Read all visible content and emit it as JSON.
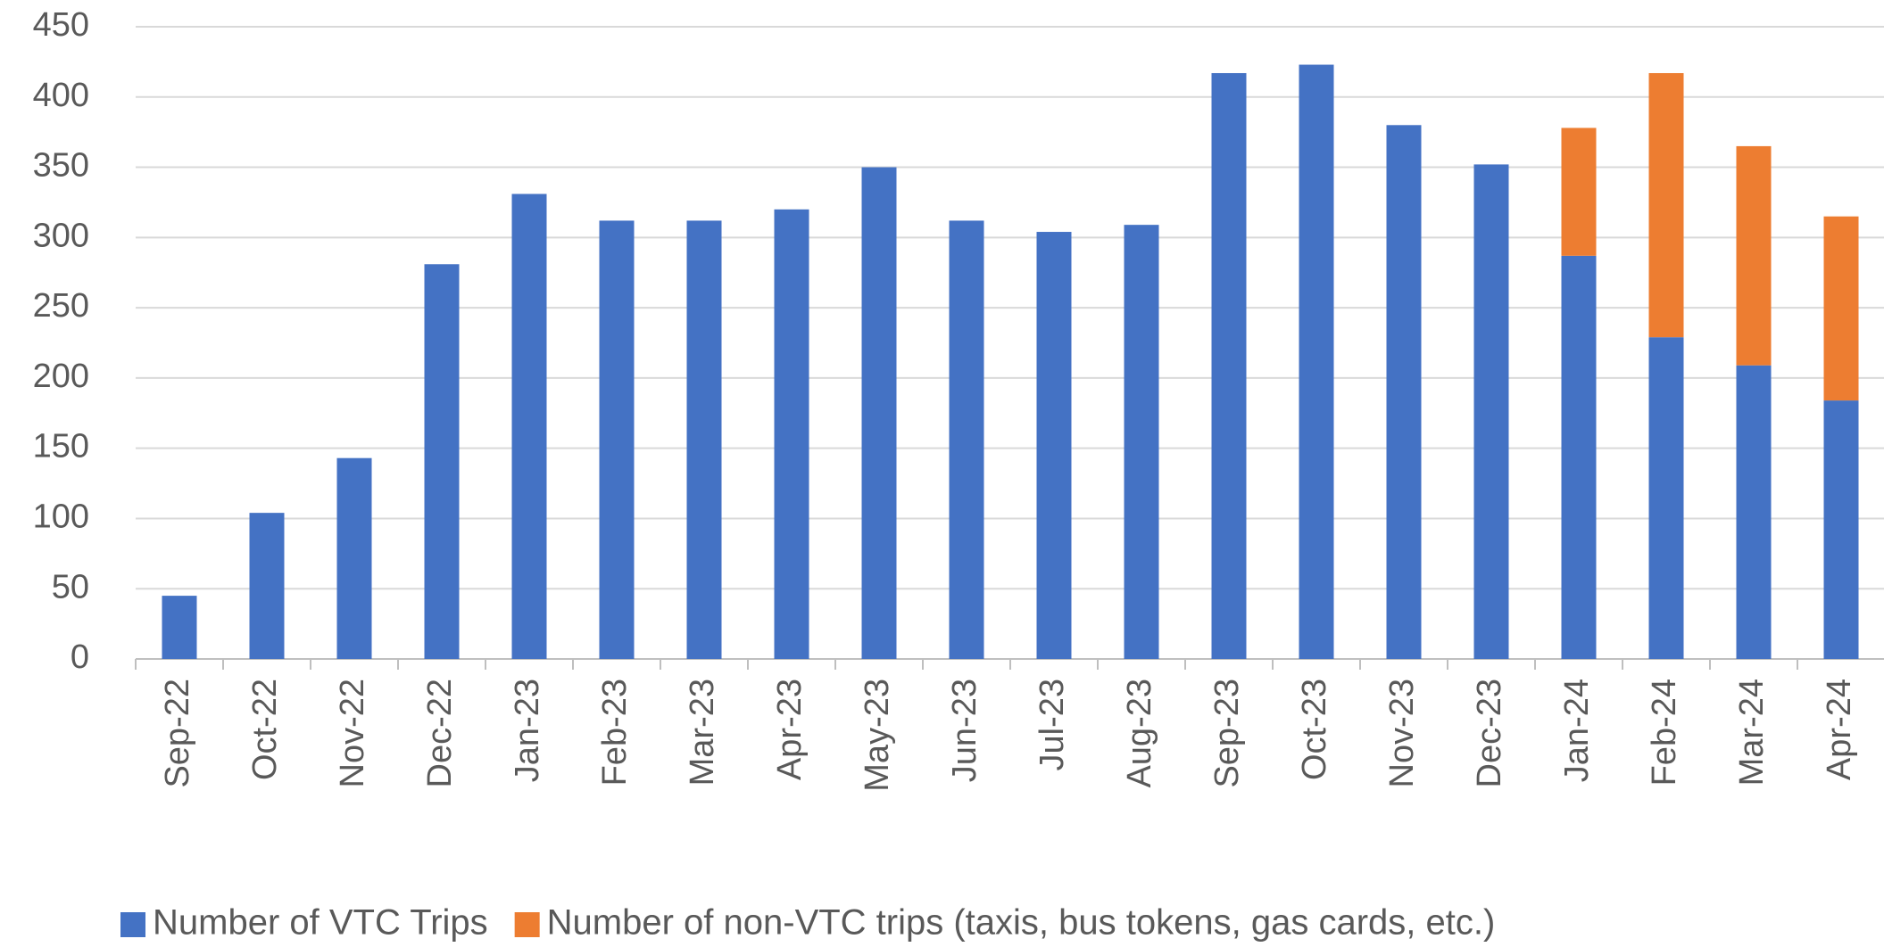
{
  "chart_data": {
    "type": "bar",
    "stacked": true,
    "categories": [
      "Sep-22",
      "Oct-22",
      "Nov-22",
      "Dec-22",
      "Jan-23",
      "Feb-23",
      "Mar-23",
      "Apr-23",
      "May-23",
      "Jun-23",
      "Jul-23",
      "Aug-23",
      "Sep-23",
      "Oct-23",
      "Nov-23",
      "Dec-23",
      "Jan-24",
      "Feb-24",
      "Mar-24",
      "Apr-24"
    ],
    "series": [
      {
        "name": "Number of VTC Trips",
        "color": "#4472c4",
        "values": [
          45,
          104,
          143,
          281,
          331,
          312,
          312,
          320,
          350,
          312,
          304,
          309,
          417,
          423,
          380,
          352,
          287,
          229,
          209,
          184
        ]
      },
      {
        "name": "Number of non-VTC trips (taxis, bus tokens, gas cards, etc.)",
        "color": "#ed7d31",
        "values": [
          null,
          null,
          null,
          null,
          null,
          null,
          null,
          null,
          null,
          null,
          null,
          null,
          null,
          null,
          null,
          null,
          91,
          188,
          156,
          131
        ]
      }
    ],
    "ylim": [
      0,
      450
    ],
    "yticks": [
      0,
      50,
      100,
      150,
      200,
      250,
      300,
      350,
      400,
      450
    ],
    "grid": true,
    "legend": "bottom"
  }
}
